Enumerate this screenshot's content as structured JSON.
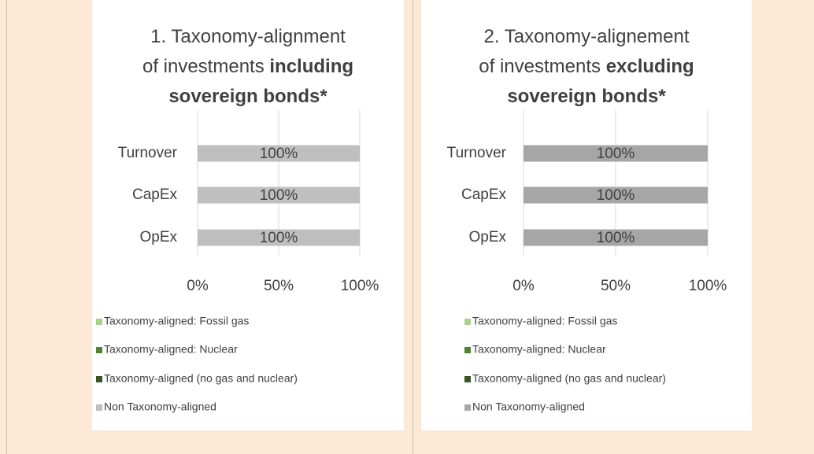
{
  "chart_data": [
    {
      "type": "hbar_stacked",
      "title": "1. Taxonomy-alignment of investments",
      "title_bold": "including sovereign bonds*",
      "categories": [
        "Turnover",
        "CapEx",
        "OpEx"
      ],
      "series": [
        {
          "name": "Taxonomy-aligned: Fossil gas",
          "color": "#a9d18e",
          "values": [
            0,
            0,
            0
          ]
        },
        {
          "name": "Taxonomy-aligned: Nuclear",
          "color": "#548235",
          "values": [
            0,
            0,
            0
          ]
        },
        {
          "name": "Taxonomy-aligned (no gas and nuclear)",
          "color": "#375623",
          "values": [
            0,
            0,
            0
          ]
        },
        {
          "name": "Non Taxonomy-aligned",
          "color": "#bfbfbf",
          "values": [
            100,
            100,
            100
          ],
          "value_labels": [
            "100%",
            "100%",
            "100%"
          ]
        }
      ],
      "xlim": [
        0,
        100
      ],
      "xticks": [
        {
          "value": 0,
          "label": "0%"
        },
        {
          "value": 50,
          "label": "50%"
        },
        {
          "value": 100,
          "label": "100%"
        }
      ],
      "grid": true
    },
    {
      "type": "hbar_stacked",
      "title": "2. Taxonomy-alignement of investments",
      "title_bold": "excluding sovereign bonds*",
      "categories": [
        "Turnover",
        "CapEx",
        "OpEx"
      ],
      "series": [
        {
          "name": "Taxonomy-aligned: Fossil gas",
          "color": "#a9d18e",
          "values": [
            0,
            0,
            0
          ]
        },
        {
          "name": "Taxonomy-aligned: Nuclear",
          "color": "#548235",
          "values": [
            0,
            0,
            0
          ]
        },
        {
          "name": "Taxonomy-aligned (no gas and nuclear)",
          "color": "#375623",
          "values": [
            0,
            0,
            0
          ]
        },
        {
          "name": "Non Taxonomy-aligned",
          "color": "#a6a6a6",
          "values": [
            100,
            100,
            100
          ],
          "value_labels": [
            "100%",
            "100%",
            "100%"
          ]
        }
      ],
      "xlim": [
        0,
        100
      ],
      "xticks": [
        {
          "value": 0,
          "label": "0%"
        },
        {
          "value": 50,
          "label": "50%"
        },
        {
          "value": 100,
          "label": "100%"
        }
      ],
      "grid": true
    }
  ]
}
